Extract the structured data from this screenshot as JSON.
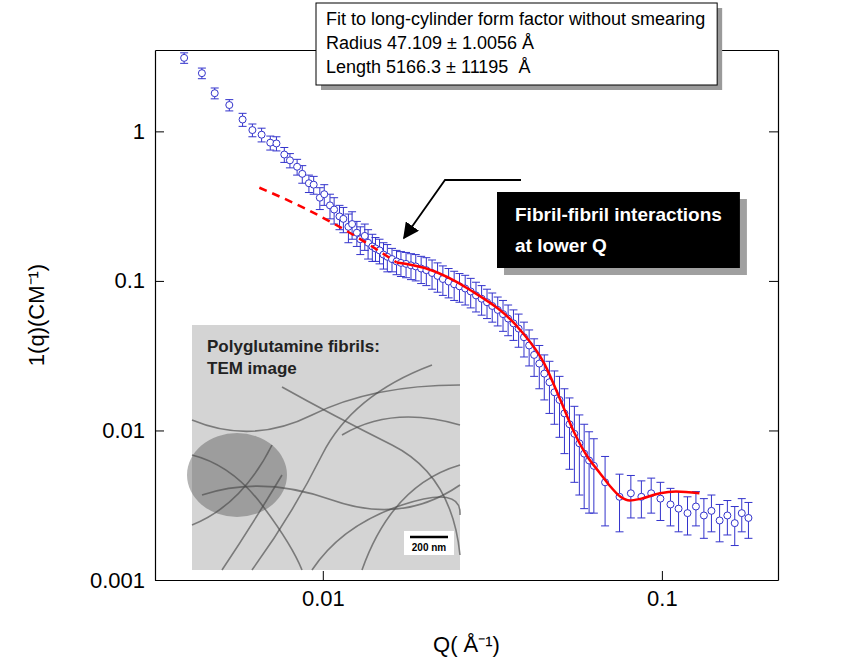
{
  "chart_data": {
    "type": "scatter",
    "log": true,
    "grid": false,
    "x_label": "Q( Å⁻¹)",
    "y_label": "1(q)(CM⁻¹)",
    "xlim": [
      0.0032,
      0.22
    ],
    "ylim": [
      0.001,
      3.5
    ],
    "xticks": [
      0.01,
      0.1
    ],
    "yticks": [
      0.001,
      0.01,
      0.1,
      1
    ],
    "series": [
      {
        "type": "scatter",
        "color": "#3333cc",
        "marker": "circle-open",
        "x": [
          0.0039,
          0.0044,
          0.0048,
          0.0053,
          0.0058,
          0.0062,
          0.0066,
          0.007,
          0.0073,
          0.0077,
          0.008,
          0.0084,
          0.0087,
          0.0091,
          0.0094,
          0.0098,
          0.0101,
          0.0105,
          0.0108,
          0.0112,
          0.0115,
          0.0119,
          0.0122,
          0.0126,
          0.0129,
          0.0133,
          0.0136,
          0.014,
          0.0143,
          0.0147,
          0.0151,
          0.0155,
          0.016,
          0.0165,
          0.017,
          0.0176,
          0.0182,
          0.0188,
          0.0195,
          0.0202,
          0.021,
          0.0218,
          0.0226,
          0.0235,
          0.0244,
          0.0253,
          0.0263,
          0.0273,
          0.0283,
          0.0294,
          0.0305,
          0.0316,
          0.0328,
          0.034,
          0.0352,
          0.0365,
          0.0378,
          0.0392,
          0.0406,
          0.042,
          0.0435,
          0.045,
          0.0466,
          0.0482,
          0.0499,
          0.0516,
          0.0534,
          0.0552,
          0.0571,
          0.059,
          0.061,
          0.063,
          0.068,
          0.075,
          0.081,
          0.087,
          0.093,
          0.099,
          0.106,
          0.112,
          0.119,
          0.126,
          0.133,
          0.14,
          0.148,
          0.156,
          0.164,
          0.172,
          0.18
        ],
        "values": [
          3.1,
          2.45,
          1.8,
          1.5,
          1.2,
          1.02,
          0.95,
          0.84,
          0.83,
          0.7,
          0.64,
          0.58,
          0.52,
          0.45,
          0.44,
          0.36,
          0.38,
          0.32,
          0.3,
          0.27,
          0.26,
          0.23,
          0.24,
          0.21,
          0.19,
          0.2,
          0.18,
          0.17,
          0.165,
          0.16,
          0.15,
          0.145,
          0.14,
          0.135,
          0.132,
          0.13,
          0.127,
          0.125,
          0.121,
          0.118,
          0.113,
          0.108,
          0.103,
          0.099,
          0.095,
          0.092,
          0.089,
          0.085,
          0.08,
          0.076,
          0.072,
          0.068,
          0.064,
          0.06,
          0.056,
          0.052,
          0.048,
          0.042,
          0.037,
          0.032,
          0.028,
          0.024,
          0.021,
          0.018,
          0.016,
          0.013,
          0.011,
          0.0095,
          0.0082,
          0.007,
          0.0063,
          0.0058,
          0.0045,
          0.0036,
          0.0038,
          0.0036,
          0.0038,
          0.0035,
          0.0032,
          0.003,
          0.0028,
          0.0031,
          0.0027,
          0.0029,
          0.0025,
          0.0027,
          0.0024,
          0.0028,
          0.0026
        ],
        "errors": [
          0.25,
          0.2,
          0.15,
          0.13,
          0.12,
          0.1,
          0.1,
          0.09,
          0.09,
          0.08,
          0.07,
          0.07,
          0.07,
          0.06,
          0.06,
          0.06,
          0.06,
          0.06,
          0.06,
          0.05,
          0.05,
          0.05,
          0.05,
          0.04,
          0.04,
          0.04,
          0.04,
          0.035,
          0.03,
          0.03,
          0.03,
          0.03,
          0.025,
          0.025,
          0.025,
          0.025,
          0.025,
          0.025,
          0.025,
          0.025,
          0.025,
          0.024,
          0.023,
          0.022,
          0.021,
          0.02,
          0.02,
          0.019,
          0.018,
          0.017,
          0.016,
          0.015,
          0.014,
          0.014,
          0.013,
          0.012,
          0.012,
          0.011,
          0.01,
          0.009,
          0.009,
          0.008,
          0.008,
          0.007,
          0.007,
          0.006,
          0.0055,
          0.005,
          0.0045,
          0.004,
          0.0035,
          0.003,
          0.0022,
          0.0015,
          0.0012,
          0.001,
          0.001,
          0.001,
          0.0009,
          0.0009,
          0.0008,
          0.0008,
          0.0008,
          0.0008,
          0.0007,
          0.0007,
          0.0007,
          0.0007,
          0.0007
        ]
      },
      {
        "type": "line",
        "color": "#ff0000",
        "line_style": "dashed",
        "x": [
          0.0065,
          0.009,
          0.012,
          0.0165
        ],
        "values": [
          0.42,
          0.3,
          0.21,
          0.133
        ]
      },
      {
        "type": "line",
        "color": "#ff0000",
        "line_style": "solid",
        "x": [
          0.0165,
          0.02,
          0.0272,
          0.0382,
          0.045,
          0.0502,
          0.055,
          0.06,
          0.0656,
          0.07,
          0.0755,
          0.0804,
          0.087,
          0.0987,
          0.11,
          0.129
        ],
        "values": [
          0.133,
          0.122,
          0.087,
          0.047,
          0.028,
          0.016,
          0.0098,
          0.0068,
          0.0052,
          0.0043,
          0.0036,
          0.0034,
          0.0035,
          0.0038,
          0.0039,
          0.0038
        ]
      }
    ],
    "fit_note": {
      "lines": [
        "Fit to long-cylinder form factor without smearing",
        "Radius 47.109 ± 1.0056 Å",
        "Length 5166.3 ± 11195  Å"
      ]
    },
    "callout": {
      "lines": [
        "Fibril-fibril interactions",
        "at lower Q"
      ]
    },
    "inset": {
      "title_lines": [
        "Polyglutamine fibrils:",
        "TEM image"
      ],
      "scale_bar": "200 nm"
    }
  }
}
